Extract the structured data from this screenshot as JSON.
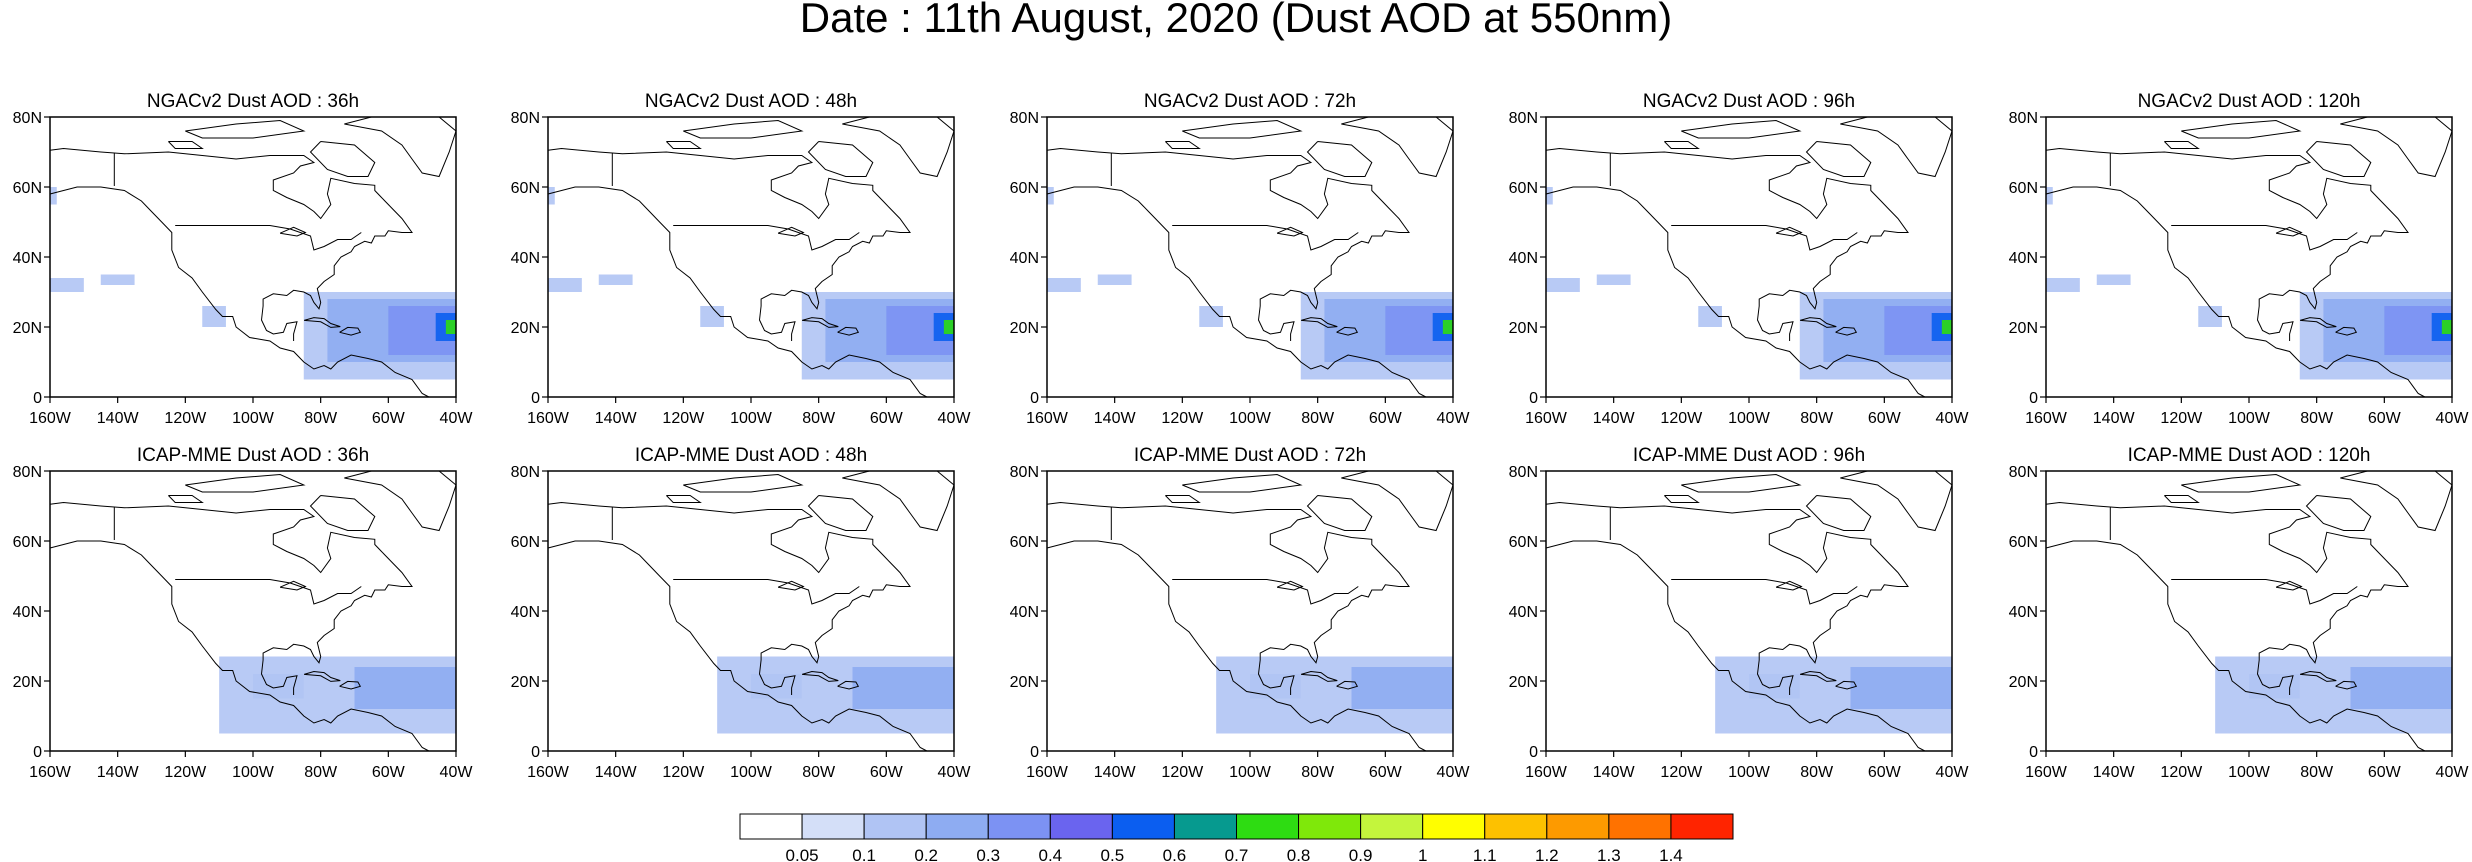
{
  "title": "Date : 11th August, 2020 (Dust AOD at 550nm)",
  "axes": {
    "lon_ticks": [
      "160W",
      "140W",
      "120W",
      "100W",
      "80W",
      "60W",
      "40W"
    ],
    "lat_ticks": [
      "80N",
      "60N",
      "40N",
      "20N",
      "0"
    ],
    "lon_range": [
      -160,
      -40
    ],
    "lat_range": [
      0,
      80
    ]
  },
  "rows": [
    {
      "model": "NGACv2",
      "panels": [
        {
          "title": "NGACv2 Dust AOD : 36h",
          "max_aod_east": 0.7
        },
        {
          "title": "NGACv2 Dust AOD : 48h",
          "max_aod_east": 0.7
        },
        {
          "title": "NGACv2 Dust AOD : 72h",
          "max_aod_east": 0.7
        },
        {
          "title": "NGACv2 Dust AOD : 96h",
          "max_aod_east": 0.7
        },
        {
          "title": "NGACv2 Dust AOD : 120h",
          "max_aod_east": 0.7
        }
      ]
    },
    {
      "model": "ICAP-MME",
      "panels": [
        {
          "title": "ICAP-MME Dust AOD : 36h",
          "max_aod_east": 0.2
        },
        {
          "title": "ICAP-MME Dust AOD : 48h",
          "max_aod_east": 0.2
        },
        {
          "title": "ICAP-MME Dust AOD : 72h",
          "max_aod_east": 0.2
        },
        {
          "title": "ICAP-MME Dust AOD : 96h",
          "max_aod_east": 0.2
        },
        {
          "title": "ICAP-MME Dust AOD : 120h",
          "max_aod_east": 0.3
        }
      ]
    }
  ],
  "colorbar": {
    "labels": [
      "0.05",
      "0.1",
      "0.2",
      "0.3",
      "0.4",
      "0.5",
      "0.6",
      "0.7",
      "0.8",
      "0.9",
      "1",
      "1.1",
      "1.2",
      "1.3",
      "1.4"
    ],
    "colors": [
      "#ffffff",
      "#d4dff8",
      "#b0c4f4",
      "#8eacf2",
      "#7c92f3",
      "#6a64ef",
      "#0b5ef0",
      "#069a8f",
      "#2edc12",
      "#7fe80a",
      "#c4f53c",
      "#fffe00",
      "#fdc100",
      "#fd9a00",
      "#ff7200",
      "#ff2400"
    ]
  }
}
